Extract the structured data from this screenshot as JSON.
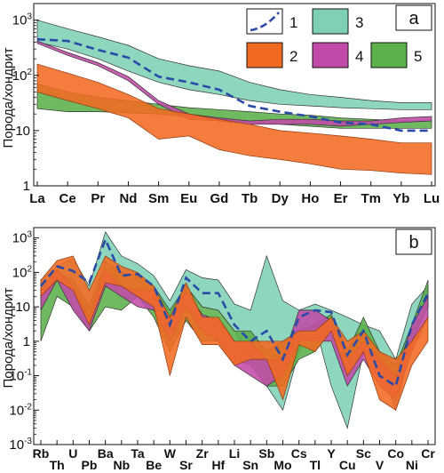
{
  "figure": {
    "ylabel": "Порода/хондрит"
  },
  "colors": {
    "s1": "#2a4aa8",
    "s2": "#f26a22",
    "s3": "#7fd0b6",
    "s4": "#c24aa8",
    "s5": "#5bb04a",
    "s2_edge": "#8a3a10"
  },
  "chart_data": [
    {
      "panel": "a",
      "type": "area",
      "yscale": "log",
      "ylim": [
        1,
        2000
      ],
      "ytick_labels": [
        {
          "value": 1000,
          "base": "10",
          "exp": "3"
        },
        {
          "value": 100,
          "base": "10",
          "exp": "2"
        },
        {
          "value": 10,
          "base": "10",
          "exp": ""
        },
        {
          "value": 1,
          "base": "1",
          "exp": ""
        }
      ],
      "categories": [
        "La",
        "Ce",
        "Pr",
        "Nd",
        "Sm",
        "Eu",
        "Gd",
        "Tb",
        "Dy",
        "Ho",
        "Er",
        "Tm",
        "Yb",
        "Lu"
      ],
      "legend": [
        "1",
        "2",
        "3",
        "4",
        "5"
      ],
      "legend_placement": "top-right",
      "series": [
        {
          "name": "3",
          "kind": "band",
          "upper": [
            1000,
            700,
            500,
            350,
            200,
            150,
            120,
            75,
            55,
            45,
            40,
            35,
            32,
            32
          ],
          "lower": [
            400,
            300,
            200,
            120,
            75,
            55,
            45,
            35,
            30,
            28,
            26,
            25,
            24,
            24
          ]
        },
        {
          "name": "5",
          "kind": "band",
          "upper": [
            70,
            50,
            40,
            35,
            30,
            26,
            24,
            22,
            20,
            19,
            17,
            16,
            15,
            15
          ],
          "lower": [
            25,
            22,
            22,
            21,
            20,
            18,
            16,
            14,
            13,
            12,
            11,
            11,
            11,
            11
          ]
        },
        {
          "name": "4",
          "kind": "band",
          "upper": [
            420,
            260,
            170,
            95,
            35,
            20,
            17,
            15,
            16,
            16,
            15,
            15,
            17,
            18
          ],
          "lower": [
            380,
            230,
            150,
            80,
            30,
            16,
            15,
            13,
            13,
            13,
            12,
            13,
            14,
            15
          ]
        },
        {
          "name": "2",
          "kind": "band",
          "upper": [
            160,
            110,
            75,
            45,
            25,
            20,
            16,
            13,
            10,
            9,
            8,
            7,
            6,
            6
          ],
          "lower": [
            50,
            35,
            25,
            17,
            7,
            8,
            4.5,
            3.5,
            3,
            2.5,
            2,
            1.9,
            1.7,
            1.6
          ]
        },
        {
          "name": "1",
          "kind": "line",
          "values": [
            450,
            420,
            290,
            210,
            95,
            75,
            55,
            28,
            22,
            18,
            14,
            13,
            10,
            10
          ]
        }
      ]
    },
    {
      "panel": "b",
      "type": "area",
      "yscale": "log",
      "ylim": [
        0.001,
        2000
      ],
      "ytick_labels": [
        {
          "value": 1000,
          "base": "10",
          "exp": "3"
        },
        {
          "value": 100,
          "base": "10",
          "exp": "2"
        },
        {
          "value": 10,
          "base": "10",
          "exp": ""
        },
        {
          "value": 1,
          "base": "1",
          "exp": ""
        },
        {
          "value": 0.1,
          "base": "10",
          "exp": "-1"
        },
        {
          "value": 0.01,
          "base": "10",
          "exp": "-2"
        },
        {
          "value": 0.001,
          "base": "10",
          "exp": "-3"
        }
      ],
      "categories": [
        "Rb",
        "Th",
        "U",
        "Pb",
        "Ba",
        "Nb",
        "Ta",
        "Be",
        "W",
        "Sr",
        "Zr",
        "Hf",
        "Li",
        "Sn",
        "Sb",
        "Mo",
        "Cs",
        "Tl",
        "Y",
        "Cu",
        "Sc",
        "V",
        "Co",
        "Ni",
        "Cr"
      ],
      "series": [
        {
          "name": "3",
          "kind": "band",
          "upper": [
            60,
            150,
            250,
            40,
            1500,
            300,
            180,
            80,
            15,
            120,
            70,
            60,
            12,
            8,
            300,
            15,
            8,
            12,
            8,
            5,
            3,
            2,
            0.3,
            12,
            40
          ],
          "lower": [
            20,
            80,
            60,
            5,
            200,
            40,
            60,
            20,
            3,
            40,
            10,
            8,
            2,
            0.3,
            0.05,
            0.01,
            0.5,
            3,
            0.05,
            0.003,
            0.5,
            0.2,
            0.01,
            1,
            10
          ]
        },
        {
          "name": "5",
          "kind": "band",
          "upper": [
            20,
            100,
            60,
            10,
            200,
            100,
            80,
            40,
            8,
            40,
            10,
            8,
            2,
            2,
            0.5,
            1,
            2,
            3,
            6,
            0.5,
            5,
            0.5,
            0.2,
            3,
            60
          ],
          "lower": [
            1,
            20,
            10,
            2,
            10,
            8,
            20,
            5,
            0.5,
            4,
            1,
            1,
            0.3,
            0.2,
            0.05,
            0.05,
            0.3,
            0.5,
            2,
            0.1,
            1,
            0.1,
            0.05,
            1,
            10
          ]
        },
        {
          "name": "4",
          "kind": "band",
          "upper": [
            30,
            120,
            40,
            5,
            120,
            40,
            30,
            30,
            5,
            30,
            6,
            4,
            1,
            1,
            0.3,
            0.3,
            8,
            8,
            4,
            0.3,
            1,
            0.3,
            0.1,
            3,
            20
          ],
          "lower": [
            8,
            60,
            8,
            2,
            40,
            20,
            10,
            8,
            1,
            10,
            2,
            1,
            0.2,
            0.1,
            0.05,
            0.1,
            1,
            1,
            1,
            0.05,
            0.3,
            0.05,
            0.02,
            0.5,
            5
          ]
        },
        {
          "name": "2",
          "kind": "band",
          "upper": [
            60,
            220,
            300,
            30,
            300,
            150,
            100,
            40,
            5,
            50,
            5,
            5,
            1,
            1,
            1,
            1,
            2,
            2,
            5,
            1,
            2,
            0.5,
            0.3,
            1,
            5
          ],
          "lower": [
            20,
            60,
            30,
            3,
            50,
            40,
            20,
            10,
            0.1,
            5,
            0.8,
            0.8,
            0.2,
            0.3,
            0.3,
            0.02,
            0.8,
            0.5,
            2,
            0.1,
            0.5,
            0.02,
            0.01,
            0.2,
            1
          ]
        },
        {
          "name": "1",
          "kind": "line",
          "values": [
            40,
            150,
            110,
            50,
            900,
            80,
            90,
            40,
            3,
            70,
            25,
            25,
            3,
            1,
            2,
            0.3,
            5,
            8,
            7,
            0.4,
            2,
            0.1,
            0.05,
            3,
            25
          ]
        }
      ]
    }
  ],
  "panel_labels": {
    "a": "a",
    "b": "b"
  }
}
